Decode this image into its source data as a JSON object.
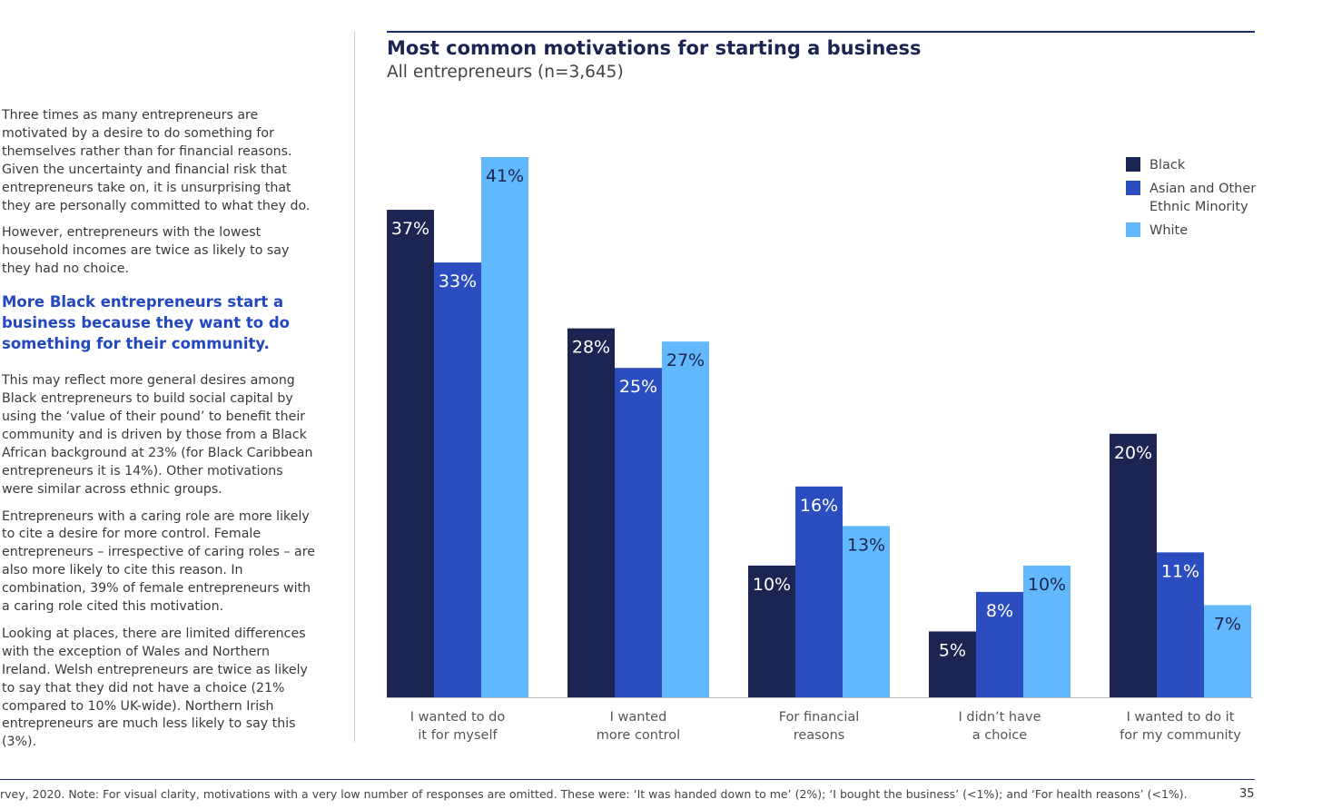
{
  "left_text": {
    "p1": "Three times as many entrepreneurs are motivated by a desire to do something for themselves rather than for financial reasons. Given the uncertainty and financial risk that entrepreneurs take on, it is unsurprising that they are personally committed to what they do.",
    "p2": "However, entrepreneurs with the lowest household incomes are twice as likely to say they had no choice.",
    "heading": "More Black entrepreneurs start a business because they want to do something for their community.",
    "p3": "This may reflect more general desires among Black entrepreneurs to build social capital by using the ‘value of their pound’ to benefit their community and is driven by those from a Black African background at 23% (for Black Caribbean entrepreneurs it is 14%). Other motivations were similar across ethnic groups.",
    "p4": "Entrepreneurs with a caring role are more likely to cite a desire for more control. Female entrepreneurs – irrespective of caring roles – are also more likely to cite this reason. In combination, 39% of female entrepreneurs with a caring role cited this motivation.",
    "p5": "Looking at places, there are limited differences with the exception of Wales and Northern Ireland. Welsh entrepreneurs are twice as likely to say that they did not have a choice (21% compared to 10% UK-wide). Northern Irish entrepreneurs are much less likely to say this (3%)."
  },
  "footer": {
    "note": "rvey, 2020. Note: For visual clarity, motivations with a very low number of responses are omitted. These were: ‘It was handed down to me’ (2%); ‘I bought the business’ (<1%); and ‘For health reasons’ (<1%).",
    "page_number": "35"
  },
  "chart_data": {
    "type": "bar",
    "title": "Most common motivations for starting a business",
    "subtitle": "All entrepreneurs (n=3,645)",
    "categories": [
      [
        "I wanted to do",
        "it for myself"
      ],
      [
        "I wanted",
        "more control"
      ],
      [
        "For financial",
        "reasons"
      ],
      [
        "I didn’t have",
        "a choice"
      ],
      [
        "I wanted to do it",
        "for my community"
      ]
    ],
    "series": [
      {
        "name": "Black",
        "color": "#1c2452",
        "label_color": "#ffffff",
        "values": [
          37,
          28,
          10,
          5,
          20
        ]
      },
      {
        "name": "Asian and Other Ethnic Minority",
        "color": "#2b4dbf",
        "label_color": "#ffffff",
        "values": [
          33,
          25,
          16,
          8,
          11
        ]
      },
      {
        "name": "White",
        "color": "#62b8fc",
        "label_color": "#1c2452",
        "values": [
          41,
          27,
          13,
          10,
          7
        ]
      }
    ],
    "legend_lines": [
      [
        "Black"
      ],
      [
        "Asian and Other",
        "Ethnic Minority"
      ],
      [
        "White"
      ]
    ],
    "value_suffix": "%",
    "ylim": [
      0,
      41
    ],
    "legend_position": "top-right",
    "grid": false
  }
}
